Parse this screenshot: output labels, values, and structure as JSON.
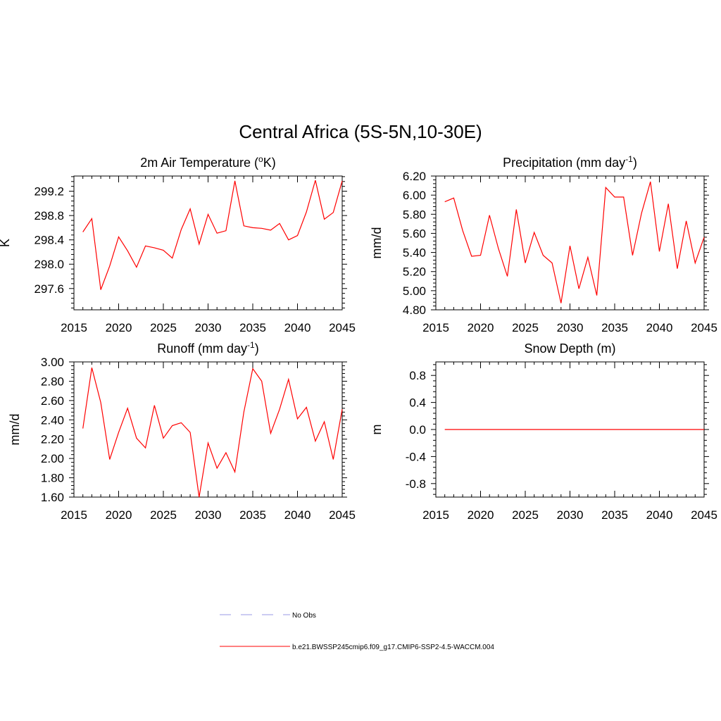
{
  "figure": {
    "title": "Central Africa (5S-5N,10-30E)"
  },
  "legend": [
    {
      "label": "No Obs",
      "color": "#9999e6",
      "style": "dashed"
    },
    {
      "label": "b.e21.BWSSP245cmip6.f09_g17.CMIP6-SSP2-4.5-WACCM.004",
      "color": "#ff0000",
      "style": "solid"
    }
  ],
  "chart_data": [
    {
      "type": "line",
      "title": "2m Air Temperature (",
      "title_sup": "o",
      "title_after": "K)",
      "xlabel": "",
      "ylabel": "K",
      "xlim": [
        2015,
        2045
      ],
      "ylim": [
        297.25,
        299.45
      ],
      "xticks": [
        2015,
        2020,
        2025,
        2030,
        2035,
        2040,
        2045
      ],
      "xtick_labels": [
        "2015",
        "2020",
        "2025",
        "2030",
        "2035",
        "2040",
        "2045"
      ],
      "yticks": [
        297.6,
        298.0,
        298.4,
        298.8,
        299.2
      ],
      "ytick_labels": [
        "297.6",
        "298.0",
        "298.4",
        "298.8",
        "299.2"
      ],
      "series": [
        {
          "color": "#ff0000",
          "x": [
            2016,
            2017,
            2018,
            2019,
            2020,
            2021,
            2022,
            2023,
            2024,
            2025,
            2026,
            2027,
            2028,
            2029,
            2030,
            2031,
            2032,
            2033,
            2034,
            2035,
            2036,
            2037,
            2038,
            2039,
            2040,
            2041,
            2042,
            2043,
            2044,
            2045
          ],
          "values": [
            298.53,
            298.75,
            297.58,
            297.97,
            298.45,
            298.22,
            297.95,
            298.3,
            298.27,
            298.23,
            298.1,
            298.57,
            298.91,
            298.33,
            298.82,
            298.51,
            298.55,
            299.37,
            298.63,
            298.6,
            298.59,
            298.56,
            298.67,
            298.4,
            298.47,
            298.86,
            299.38,
            298.74,
            298.85,
            299.37
          ]
        }
      ]
    },
    {
      "type": "line",
      "title": "Precipitation (mm day",
      "title_sup": "-1",
      "title_after": ")",
      "xlabel": "",
      "ylabel": "mm/d",
      "xlim": [
        2015,
        2045
      ],
      "ylim": [
        4.8,
        6.2
      ],
      "xticks": [
        2015,
        2020,
        2025,
        2030,
        2035,
        2040,
        2045
      ],
      "xtick_labels": [
        "2015",
        "2020",
        "2025",
        "2030",
        "2035",
        "2040",
        "2045"
      ],
      "yticks": [
        4.8,
        5.0,
        5.2,
        5.4,
        5.6,
        5.8,
        6.0,
        6.2
      ],
      "ytick_labels": [
        "4.80",
        "5.00",
        "5.20",
        "5.40",
        "5.60",
        "5.80",
        "6.00",
        "6.20"
      ],
      "series": [
        {
          "color": "#ff0000",
          "x": [
            2016,
            2017,
            2018,
            2019,
            2020,
            2021,
            2022,
            2023,
            2024,
            2025,
            2026,
            2027,
            2028,
            2029,
            2030,
            2031,
            2032,
            2033,
            2034,
            2035,
            2036,
            2037,
            2038,
            2039,
            2040,
            2041,
            2042,
            2043,
            2044,
            2045
          ],
          "values": [
            5.93,
            5.97,
            5.63,
            5.36,
            5.37,
            5.79,
            5.44,
            5.15,
            5.85,
            5.29,
            5.61,
            5.37,
            5.29,
            4.87,
            5.47,
            5.02,
            5.35,
            4.95,
            6.08,
            5.98,
            5.98,
            5.37,
            5.81,
            6.14,
            5.41,
            5.91,
            5.23,
            5.73,
            5.29,
            5.56
          ]
        }
      ]
    },
    {
      "type": "line",
      "title": "Runoff (mm day",
      "title_sup": "-1",
      "title_after": ")",
      "xlabel": "",
      "ylabel": "mm/d",
      "xlim": [
        2015,
        2045
      ],
      "ylim": [
        1.6,
        3.0
      ],
      "xticks": [
        2015,
        2020,
        2025,
        2030,
        2035,
        2040,
        2045
      ],
      "xtick_labels": [
        "2015",
        "2020",
        "2025",
        "2030",
        "2035",
        "2040",
        "2045"
      ],
      "yticks": [
        1.6,
        1.8,
        2.0,
        2.2,
        2.4,
        2.6,
        2.8,
        3.0
      ],
      "ytick_labels": [
        "1.60",
        "1.80",
        "2.00",
        "2.20",
        "2.40",
        "2.60",
        "2.80",
        "3.00"
      ],
      "series": [
        {
          "color": "#ff0000",
          "x": [
            2016,
            2017,
            2018,
            2019,
            2020,
            2021,
            2022,
            2023,
            2024,
            2025,
            2026,
            2027,
            2028,
            2029,
            2030,
            2031,
            2032,
            2033,
            2034,
            2035,
            2036,
            2037,
            2038,
            2039,
            2040,
            2041,
            2042,
            2043,
            2044,
            2045
          ],
          "values": [
            2.31,
            2.94,
            2.58,
            1.99,
            2.27,
            2.52,
            2.21,
            2.11,
            2.55,
            2.21,
            2.34,
            2.37,
            2.27,
            1.6,
            2.16,
            1.9,
            2.06,
            1.86,
            2.48,
            2.93,
            2.8,
            2.26,
            2.51,
            2.82,
            2.41,
            2.53,
            2.18,
            2.38,
            1.99,
            2.51
          ]
        }
      ]
    },
    {
      "type": "line",
      "title": "Snow Depth (m)",
      "title_sup": "",
      "title_after": "",
      "xlabel": "",
      "ylabel": "m",
      "xlim": [
        2015,
        2045
      ],
      "ylim": [
        -1.0,
        1.0
      ],
      "xticks": [
        2015,
        2020,
        2025,
        2030,
        2035,
        2040,
        2045
      ],
      "xtick_labels": [
        "2015",
        "2020",
        "2025",
        "2030",
        "2035",
        "2040",
        "2045"
      ],
      "yticks": [
        -0.8,
        -0.4,
        0.0,
        0.4,
        0.8
      ],
      "ytick_labels": [
        "-0.8",
        "-0.4",
        "0.0",
        "0.4",
        "0.8"
      ],
      "series": [
        {
          "color": "#ff0000",
          "x": [
            2016,
            2017,
            2018,
            2019,
            2020,
            2021,
            2022,
            2023,
            2024,
            2025,
            2026,
            2027,
            2028,
            2029,
            2030,
            2031,
            2032,
            2033,
            2034,
            2035,
            2036,
            2037,
            2038,
            2039,
            2040,
            2041,
            2042,
            2043,
            2044,
            2045
          ],
          "values": [
            0,
            0,
            0,
            0,
            0,
            0,
            0,
            0,
            0,
            0,
            0,
            0,
            0,
            0,
            0,
            0,
            0,
            0,
            0,
            0,
            0,
            0,
            0,
            0,
            0,
            0,
            0,
            0,
            0,
            0
          ]
        }
      ]
    }
  ]
}
